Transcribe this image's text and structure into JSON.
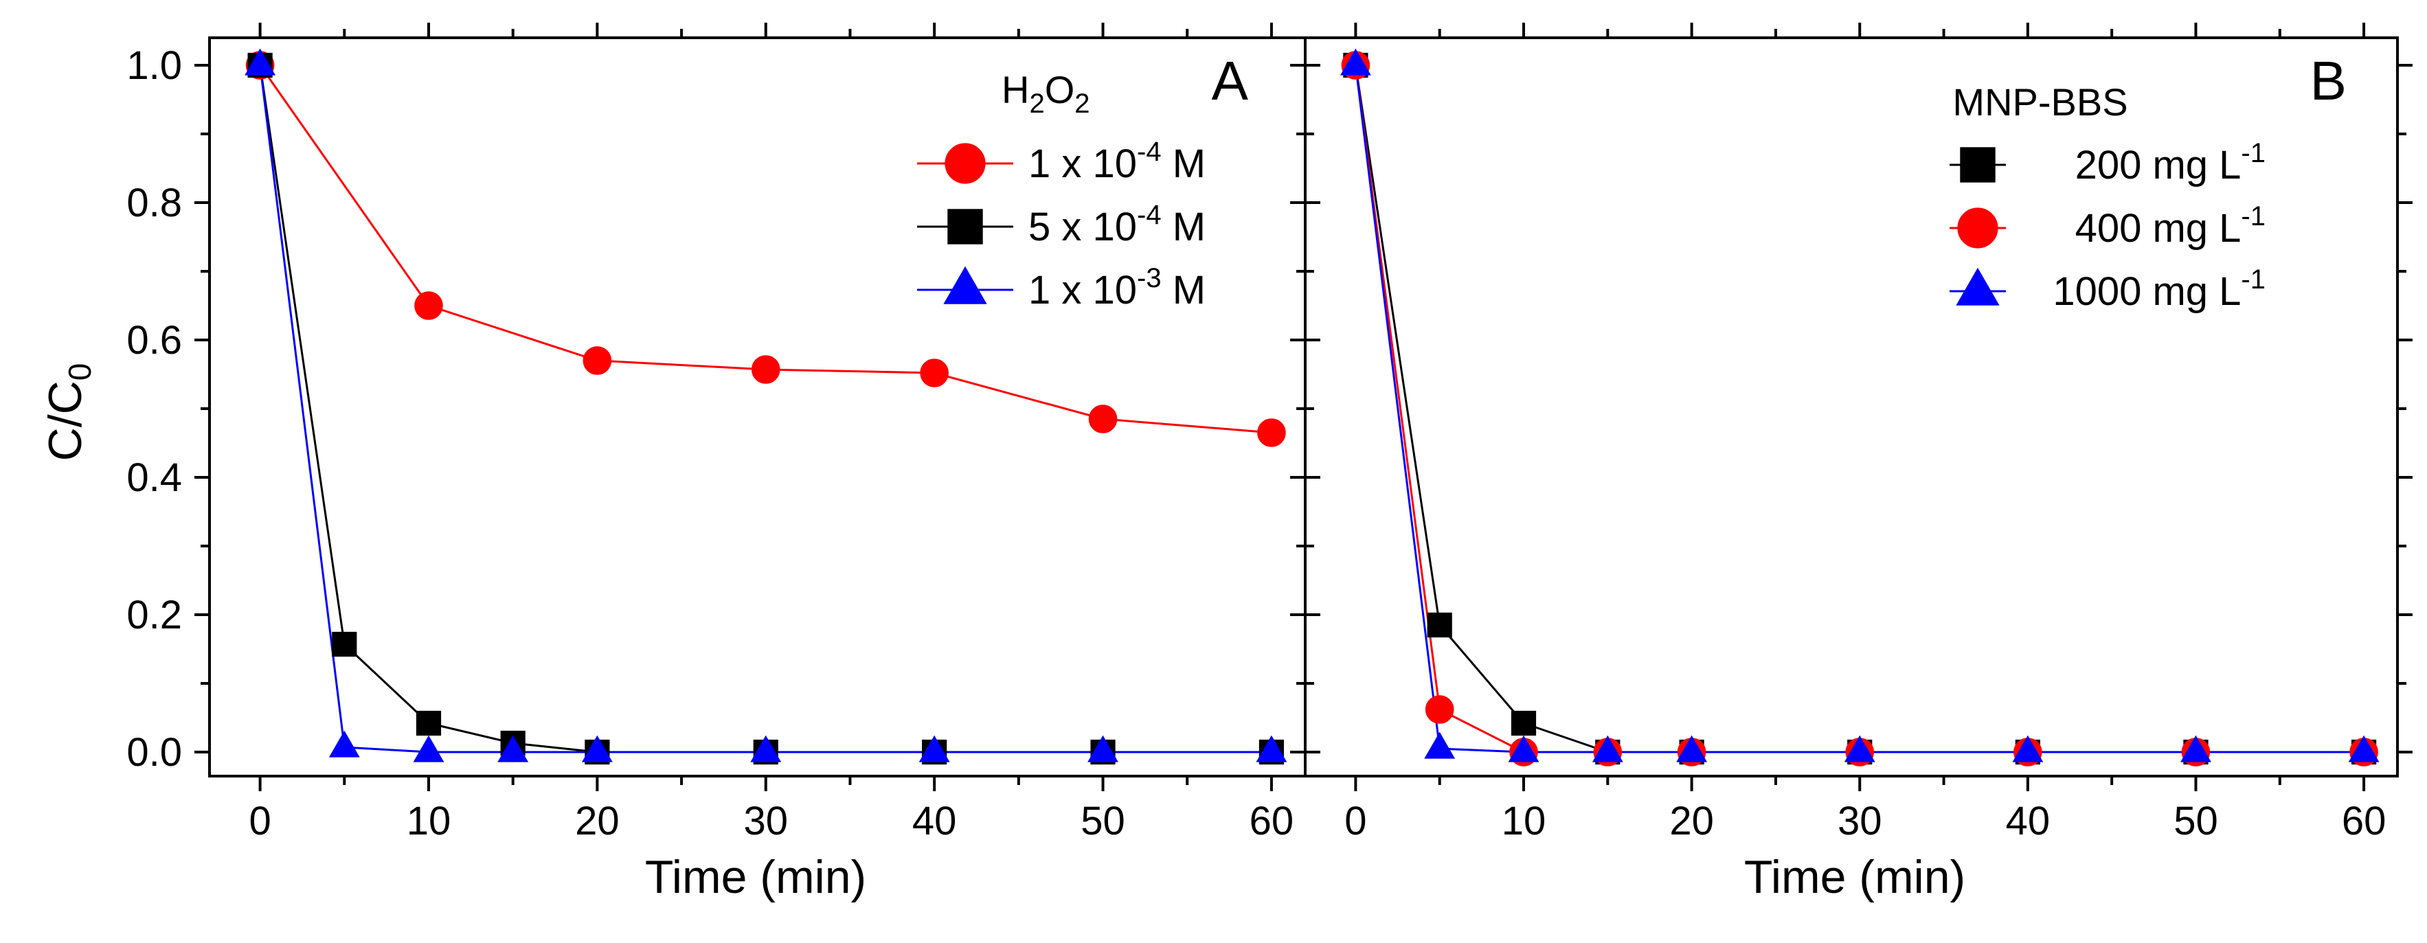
{
  "chart_data": [
    {
      "type": "line",
      "panel_label": "A",
      "xlabel": "Time (min)",
      "ylabel": "C/C",
      "ylabel_sub": "0",
      "xlim": [
        -3,
        62
      ],
      "ylim": [
        -0.035,
        1.04
      ],
      "xticks": [
        0,
        10,
        20,
        30,
        40,
        50,
        60
      ],
      "yticks": [
        0.0,
        0.2,
        0.4,
        0.6,
        0.8,
        1.0
      ],
      "ytick_labels": [
        "0.0",
        "0.2",
        "0.4",
        "0.6",
        "0.8",
        "1.0"
      ],
      "legend_title": "H2O2",
      "legend_title_parts": {
        "main": "H",
        "sub1": "2",
        "mid": "O",
        "sub2": "2"
      },
      "legend_position": "top-right",
      "series": [
        {
          "name": "1 x 10-4 M",
          "label_pre": "1 x 10",
          "label_sup": "-4",
          "label_post": " M",
          "color": "#ff0000",
          "marker": "circle",
          "x": [
            0,
            10,
            20,
            30,
            40,
            50,
            60
          ],
          "y": [
            1.0,
            0.65,
            0.57,
            0.557,
            0.552,
            0.485,
            0.465
          ]
        },
        {
          "name": "5 x 10-4 M",
          "label_pre": "5 x 10",
          "label_sup": "-4",
          "label_post": " M",
          "color": "#000000",
          "marker": "square",
          "x": [
            0,
            5,
            10,
            15,
            20,
            30,
            40,
            50,
            60
          ],
          "y": [
            1.0,
            0.157,
            0.042,
            0.013,
            0.0,
            0.0,
            0.0,
            0.0,
            0.0
          ]
        },
        {
          "name": "1 x 10-3 M",
          "label_pre": "1 x 10",
          "label_sup": "-3",
          "label_post": " M",
          "color": "#0000ff",
          "marker": "triangle",
          "x": [
            0,
            5,
            10,
            15,
            20,
            30,
            40,
            50,
            60
          ],
          "y": [
            1.0,
            0.007,
            0.0,
            0.0,
            0.0,
            0.0,
            0.0,
            0.0,
            0.0
          ]
        }
      ]
    },
    {
      "type": "line",
      "panel_label": "B",
      "xlabel": "Time (min)",
      "xlim": [
        -3,
        62
      ],
      "ylim": [
        -0.035,
        1.04
      ],
      "xticks": [
        0,
        10,
        20,
        30,
        40,
        50,
        60
      ],
      "legend_title": "MNP-BBS",
      "legend_position": "top-right",
      "series": [
        {
          "name": "200 mg L-1",
          "label_pre": "200 mg L",
          "label_sup": "-1",
          "label_post": "",
          "color": "#000000",
          "marker": "square",
          "x": [
            0,
            5,
            10,
            15,
            20,
            30,
            40,
            50,
            60
          ],
          "y": [
            1.0,
            0.185,
            0.042,
            0.0,
            0.0,
            0.0,
            0.0,
            0.0,
            0.0
          ]
        },
        {
          "name": "400 mg L-1",
          "label_pre": "400 mg L",
          "label_sup": "-1",
          "label_post": "",
          "color": "#ff0000",
          "marker": "circle",
          "x": [
            0,
            5,
            10,
            15,
            20,
            30,
            40,
            50,
            60
          ],
          "y": [
            1.0,
            0.062,
            0.0,
            0.0,
            0.0,
            0.0,
            0.0,
            0.0,
            0.0
          ]
        },
        {
          "name": "1000 mg L-1",
          "label_pre": "1000 mg L",
          "label_sup": "-1",
          "label_post": "",
          "color": "#0000ff",
          "marker": "triangle",
          "x": [
            0,
            5,
            10,
            15,
            20,
            30,
            40,
            50,
            60
          ],
          "y": [
            1.0,
            0.005,
            0.0,
            0.0,
            0.0,
            0.0,
            0.0,
            0.0,
            0.0
          ]
        }
      ]
    }
  ]
}
